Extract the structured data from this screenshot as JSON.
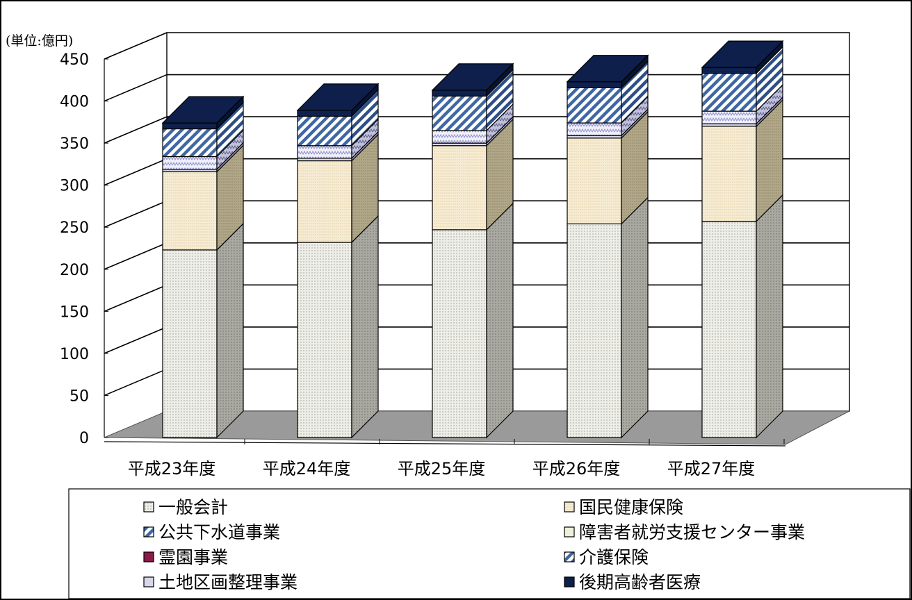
{
  "chart_data": {
    "type": "bar",
    "stacked": true,
    "three_d": true,
    "unit_label": "(単位:億円)",
    "categories": [
      "平成23年度",
      "平成24年度",
      "平成25年度",
      "平成26年度",
      "平成27年度"
    ],
    "ylim": [
      0,
      450
    ],
    "yticks": [
      0,
      50,
      100,
      150,
      200,
      250,
      300,
      350,
      400,
      450
    ],
    "grid": true,
    "legend_position": "bottom",
    "series": [
      {
        "name": "一般会計",
        "values": [
          223,
          232,
          247,
          254,
          257
        ],
        "color": "#e8e8e2"
      },
      {
        "name": "国民健康保険",
        "values": [
          93,
          97,
          100,
          102,
          113
        ],
        "color": "#f3e9cf"
      },
      {
        "name": "公共下水道事業",
        "values": [
          0,
          0,
          0,
          0,
          0
        ],
        "color": "#5a7fb3"
      },
      {
        "name": "障害者就労支援センター事業",
        "values": [
          0,
          0,
          0,
          0,
          0
        ],
        "color": "#eef0da"
      },
      {
        "name": "霊園事業",
        "values": [
          0,
          0,
          0,
          0,
          0
        ],
        "color": "#8b1a4a"
      },
      {
        "name": "介護保険",
        "values": [
          15,
          15,
          15,
          15,
          15
        ],
        "color": "#dcdcf0"
      },
      {
        "name": "土地区画整理事業",
        "values": [
          3,
          3,
          3,
          3,
          3
        ],
        "color": "#c8c8dc"
      },
      {
        "name": "後期高齢者医療",
        "values": [
          33,
          35,
          41,
          42,
          45
        ],
        "color": "#3f67a3"
      },
      {
        "name": "",
        "values": [
          7,
          7,
          7,
          7,
          7
        ],
        "color": "#0d1f4a"
      }
    ]
  },
  "legend": {
    "left": [
      "一般会計",
      "公共下水道事業",
      "霊園事業",
      "土地区画整理事業"
    ],
    "right": [
      "国民健康保険",
      "障害者就労支援センター事業",
      "介護保険",
      "後期高齢者医療"
    ]
  }
}
